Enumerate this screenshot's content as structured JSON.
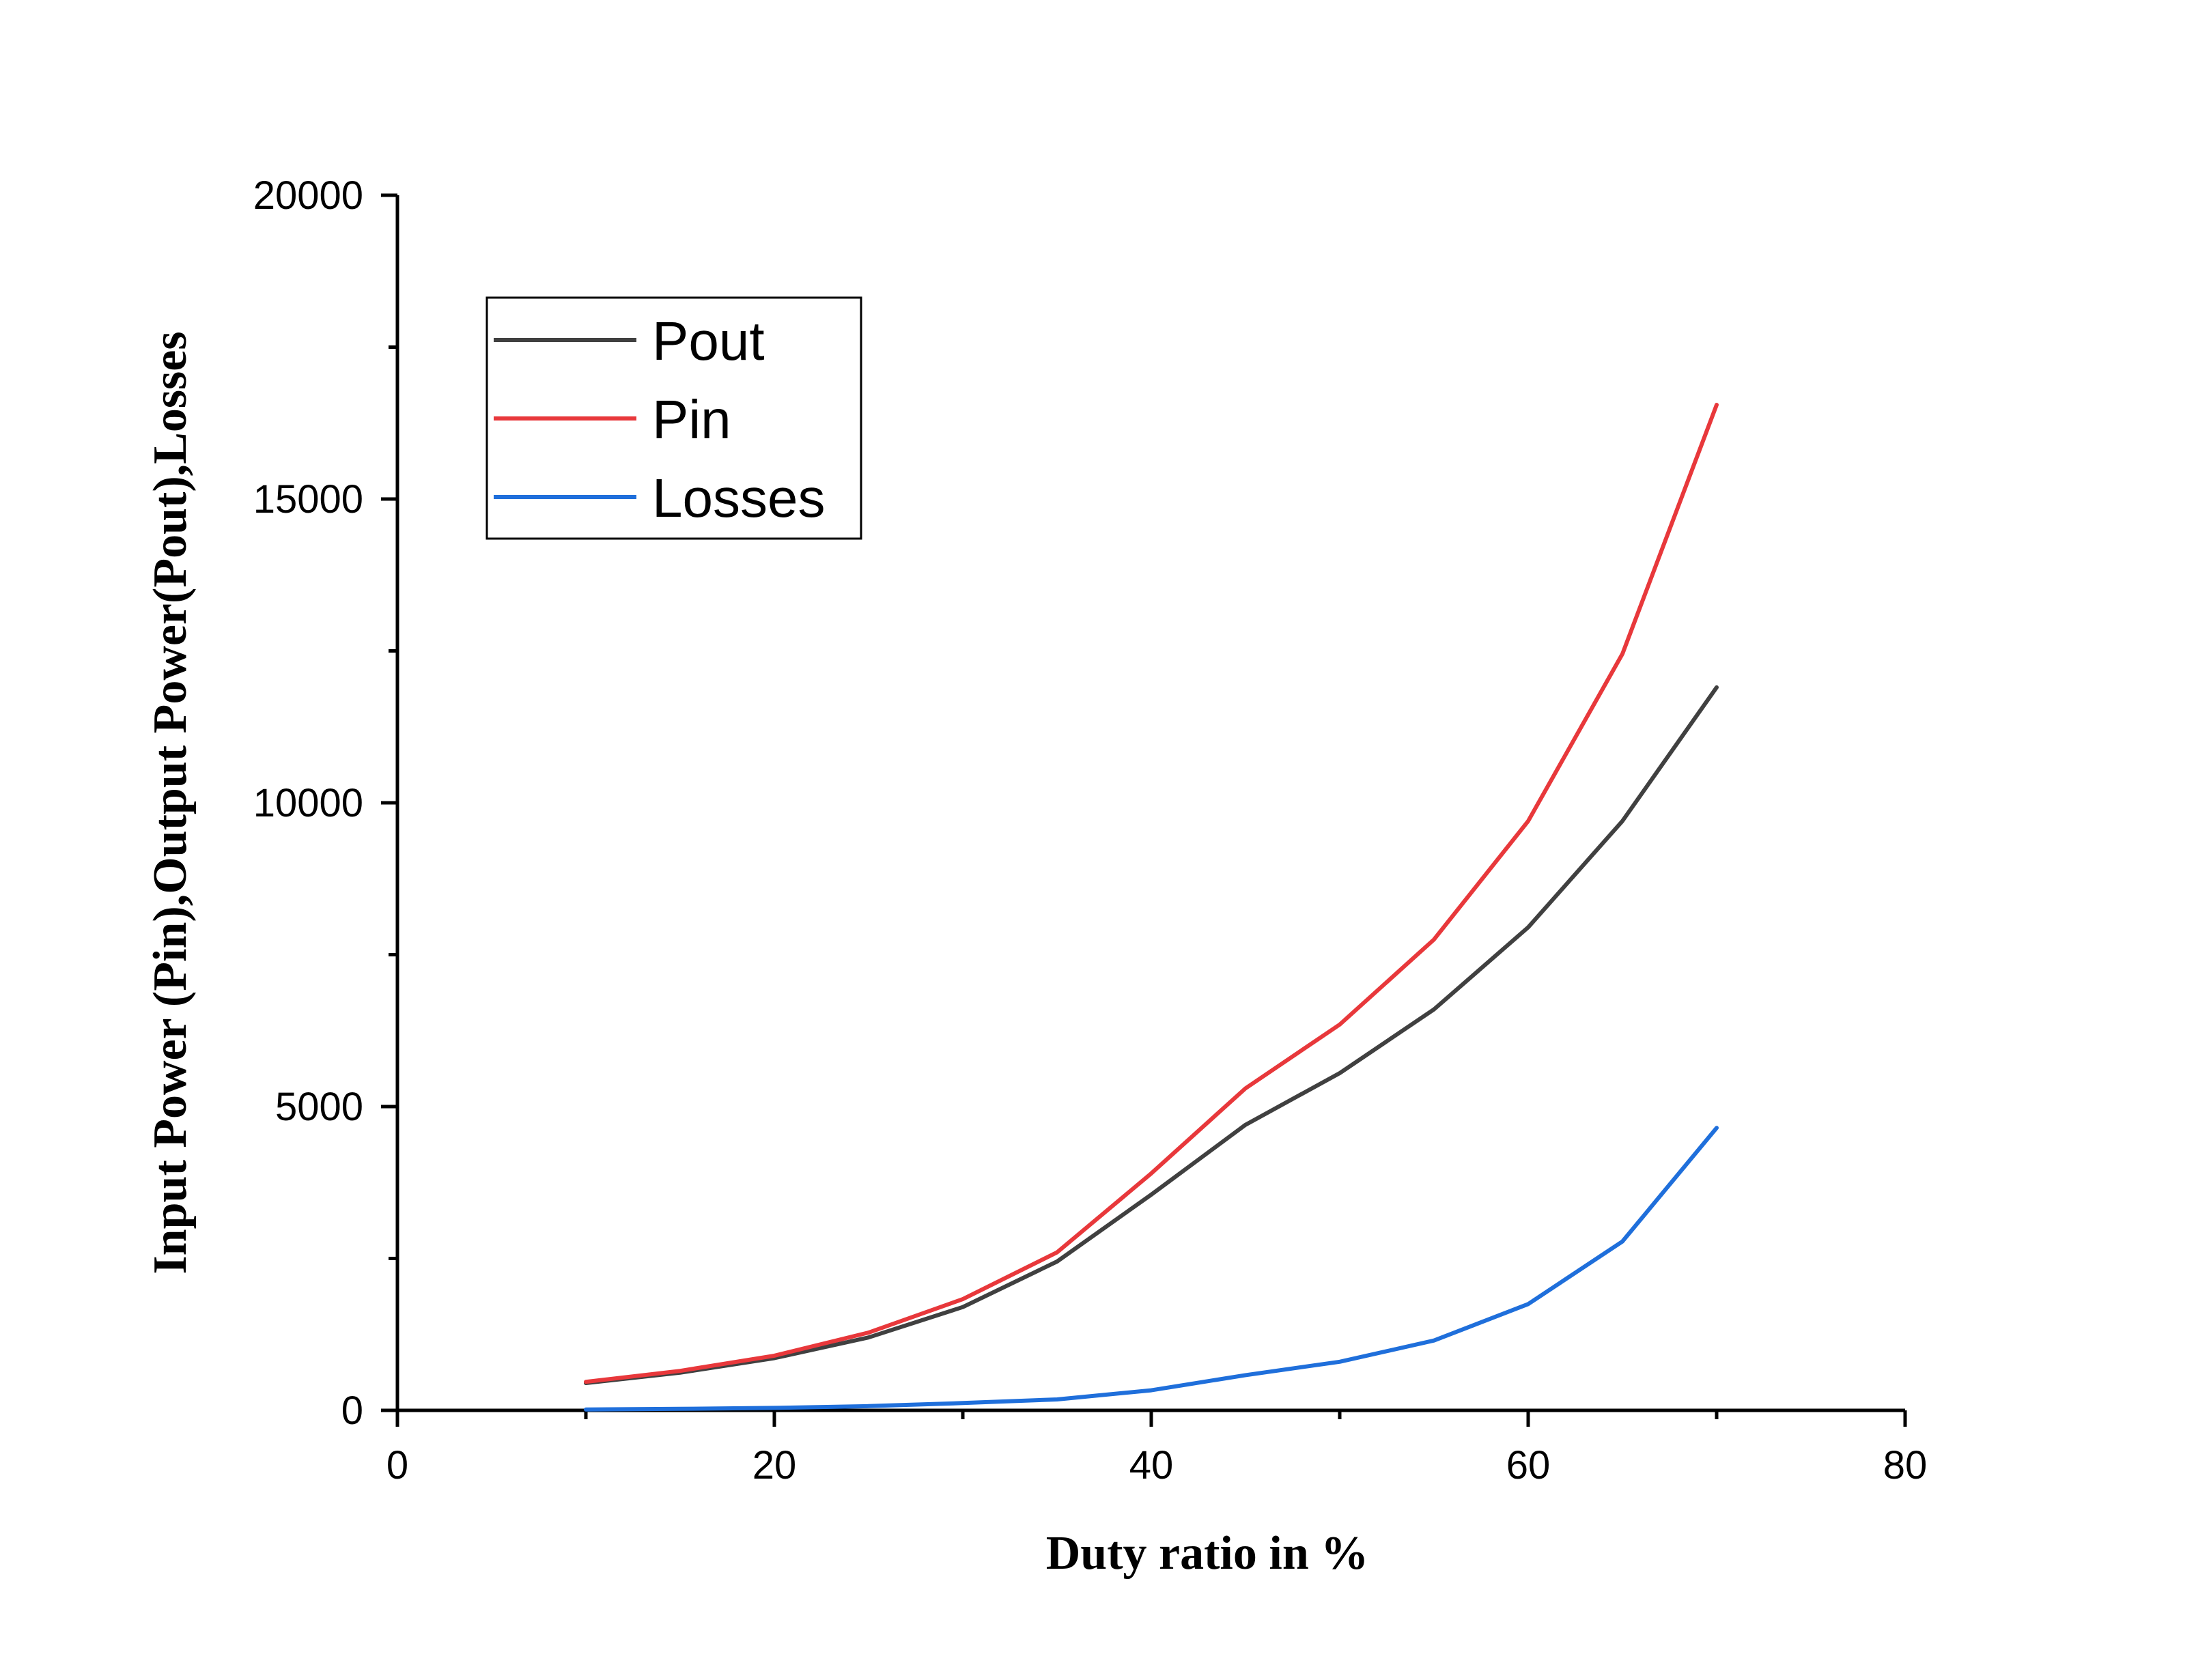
{
  "chart_data": {
    "type": "line",
    "xlabel": "Duty ratio in %",
    "ylabel": "Input Power (Pin),Output Power(Pout),Losses",
    "xlim": [
      0,
      80
    ],
    "ylim": [
      0,
      20000
    ],
    "x_ticks": [
      "0",
      "20",
      "40",
      "60",
      "80"
    ],
    "y_ticks": [
      "0",
      "5000",
      "10000",
      "15000",
      "20000"
    ],
    "grid": false,
    "legend_position": "top-left",
    "x": [
      10,
      15,
      20,
      25,
      30,
      35,
      40,
      45,
      50,
      55,
      60,
      65,
      70
    ],
    "series": [
      {
        "name": "Pout",
        "color": "#404040",
        "values": [
          450,
          620,
          860,
          1200,
          1700,
          2450,
          3550,
          4700,
          5550,
          6600,
          7950,
          9700,
          11900
        ]
      },
      {
        "name": "Pin",
        "color": "#e8383b",
        "values": [
          470,
          650,
          900,
          1280,
          1830,
          2600,
          3900,
          5300,
          6350,
          7750,
          9700,
          12450,
          16550
        ]
      },
      {
        "name": "Losses",
        "color": "#1f6fdb",
        "values": [
          15,
          25,
          40,
          70,
          120,
          180,
          330,
          580,
          800,
          1150,
          1750,
          2780,
          4650
        ]
      }
    ]
  }
}
